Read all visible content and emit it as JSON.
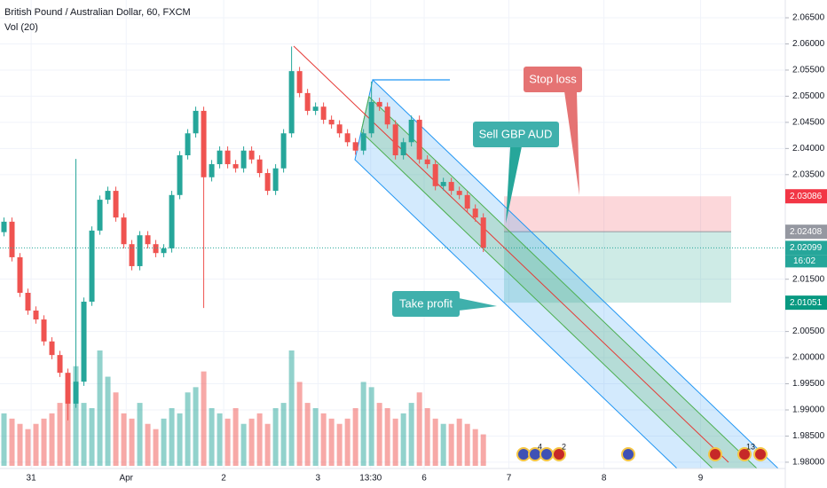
{
  "chart_data": {
    "type": "candlestick",
    "title": "British Pound / Australian Dollar, 60, FXCM",
    "indicator": "Vol (20)",
    "xlim": [
      -0.5,
      97.8
    ],
    "xticks": [
      {
        "value": 3.4,
        "label": "31"
      },
      {
        "value": 15.3,
        "label": "Apr"
      },
      {
        "value": 27.5,
        "label": "2"
      },
      {
        "value": 39.3,
        "label": "3"
      },
      {
        "value": 45.9,
        "label": "13:30"
      },
      {
        "value": 52.6,
        "label": "6"
      },
      {
        "value": 63.2,
        "label": "7"
      },
      {
        "value": 75.1,
        "label": "8"
      },
      {
        "value": 87.2,
        "label": "9"
      }
    ],
    "ylim": [
      1.9788,
      2.0684
    ],
    "yticks": [
      {
        "value": 1.98,
        "label": "1.98000"
      },
      {
        "value": 1.985,
        "label": "1.98500"
      },
      {
        "value": 1.99,
        "label": "1.99000"
      },
      {
        "value": 1.995,
        "label": "1.99500"
      },
      {
        "value": 2.0,
        "label": "2.00000"
      },
      {
        "value": 2.005,
        "label": "2.00500"
      },
      {
        "value": 2.015,
        "label": "2.01500"
      },
      {
        "value": 2.035,
        "label": "2.03500"
      },
      {
        "value": 2.04,
        "label": "2.04000"
      },
      {
        "value": 2.045,
        "label": "2.04500"
      },
      {
        "value": 2.05,
        "label": "2.05000"
      },
      {
        "value": 2.055,
        "label": "2.05500"
      },
      {
        "value": 2.06,
        "label": "2.06000"
      },
      {
        "value": 2.065,
        "label": "2.06500"
      }
    ],
    "grid": true,
    "up_color": "#26a69a",
    "down_color": "#ef5350",
    "open": [
      2.024,
      2.026,
      2.0192,
      2.0124,
      2.009,
      2.0073,
      2.0031,
      2.0005,
      1.9971,
      1.9912,
      1.9954,
      2.0107,
      2.0243,
      2.0302,
      2.0319,
      2.0268,
      2.0217,
      2.0175,
      2.0234,
      2.0217,
      2.02,
      2.0209,
      2.0311,
      2.0387,
      2.0429,
      2.0472,
      2.0345,
      2.037,
      2.0396,
      2.037,
      2.0362,
      2.0396,
      2.0379,
      2.0353,
      2.0319,
      2.0362,
      2.0429,
      2.0548,
      2.0506,
      2.0472,
      2.048,
      2.0455,
      2.0446,
      2.0429,
      2.0412,
      2.0396,
      2.0429,
      2.0489,
      2.048,
      2.0446,
      2.0387,
      2.0412,
      2.0455,
      2.0379,
      2.037,
      2.0328,
      2.0336,
      2.0319,
      2.0311,
      2.0285,
      2.0268
    ],
    "high": [
      2.0268,
      2.0268,
      2.02,
      2.0132,
      2.0098,
      2.0081,
      2.0039,
      2.0013,
      1.9979,
      2.038,
      2.0115,
      2.0251,
      2.031,
      2.0327,
      2.0327,
      2.0276,
      2.0225,
      2.0242,
      2.0242,
      2.0225,
      2.0217,
      2.0319,
      2.0395,
      2.0437,
      2.048,
      2.048,
      2.0378,
      2.0404,
      2.0404,
      2.0378,
      2.0404,
      2.0404,
      2.0387,
      2.0361,
      2.037,
      2.0437,
      2.0595,
      2.0556,
      2.0514,
      2.0488,
      2.0488,
      2.0463,
      2.0454,
      2.0437,
      2.042,
      2.0437,
      2.0528,
      2.0497,
      2.0488,
      2.0454,
      2.042,
      2.0463,
      2.0463,
      2.0387,
      2.0378,
      2.0344,
      2.0344,
      2.0327,
      2.0319,
      2.0293,
      2.0276
    ],
    "low": [
      2.0232,
      2.0184,
      2.0116,
      2.0082,
      2.0065,
      2.0023,
      1.9997,
      1.9963,
      1.988,
      1.9904,
      1.9946,
      2.0099,
      2.0235,
      2.0294,
      2.026,
      2.0209,
      2.0167,
      2.0167,
      2.0209,
      2.0192,
      2.0192,
      2.0201,
      2.0303,
      2.0379,
      2.0421,
      2.0095,
      2.0337,
      2.0362,
      2.0362,
      2.0354,
      2.0354,
      2.0371,
      2.0345,
      2.0311,
      2.0311,
      2.0354,
      2.0421,
      2.0498,
      2.0464,
      2.0464,
      2.0447,
      2.0438,
      2.0421,
      2.0404,
      2.0388,
      2.0388,
      2.0421,
      2.0472,
      2.0438,
      2.0379,
      2.0379,
      2.0404,
      2.0371,
      2.0362,
      2.032,
      2.032,
      2.0311,
      2.0303,
      2.0277,
      2.026,
      2.0202
    ],
    "close": [
      2.026,
      2.0192,
      2.0124,
      2.009,
      2.0073,
      2.0031,
      2.0005,
      1.9971,
      1.9912,
      1.9954,
      2.0107,
      2.0243,
      2.0302,
      2.0319,
      2.0268,
      2.0217,
      2.0175,
      2.0234,
      2.0217,
      2.02,
      2.0209,
      2.0311,
      2.0387,
      2.0429,
      2.0472,
      2.0345,
      2.037,
      2.0396,
      2.037,
      2.0362,
      2.0396,
      2.0379,
      2.0353,
      2.0319,
      2.0362,
      2.0429,
      2.0548,
      2.0506,
      2.0472,
      2.048,
      2.0455,
      2.0446,
      2.0429,
      2.0412,
      2.0396,
      2.0429,
      2.0489,
      2.048,
      2.0446,
      2.0387,
      2.0412,
      2.0455,
      2.0379,
      2.037,
      2.0328,
      2.0336,
      2.0319,
      2.0311,
      2.0285,
      2.0268,
      2.02099
    ],
    "volume": [
      50,
      45,
      40,
      35,
      40,
      45,
      50,
      60,
      80,
      95,
      60,
      55,
      110,
      85,
      70,
      50,
      45,
      60,
      40,
      35,
      45,
      55,
      50,
      70,
      75,
      90,
      55,
      50,
      45,
      55,
      40,
      45,
      50,
      40,
      55,
      60,
      110,
      80,
      60,
      55,
      50,
      45,
      40,
      45,
      55,
      80,
      75,
      60,
      55,
      45,
      50,
      60,
      70,
      55,
      45,
      40,
      40,
      45,
      40,
      35,
      30
    ],
    "last_price": {
      "value": 2.02099,
      "label": "2.02099",
      "color": "#26a69a"
    },
    "countdown": "16:02",
    "position": {
      "stop_loss": {
        "value": 2.03086,
        "label": "2.03086",
        "color": "#f23645"
      },
      "entry": {
        "value": 2.02408,
        "label": "2.02408",
        "color": "#9598a1"
      },
      "take_profit": {
        "value": 2.01051,
        "label": "2.01051",
        "color": "#089981"
      }
    },
    "annotations": [
      "Stop loss",
      "Sell GBP AUD",
      "Take profit"
    ],
    "events": [
      "4",
      "2",
      "13"
    ]
  }
}
